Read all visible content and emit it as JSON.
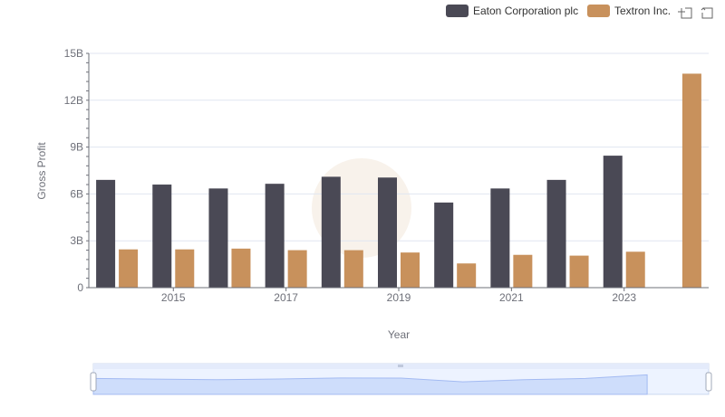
{
  "chart_data": {
    "type": "bar",
    "categories": [
      "2014",
      "2015",
      "2016",
      "2017",
      "2018",
      "2019",
      "2020",
      "2021",
      "2022",
      "2023",
      "2024"
    ],
    "x_tick_labels": [
      "2015",
      "2017",
      "2019",
      "2021",
      "2023"
    ],
    "y_tick_labels": [
      "0",
      "3B",
      "6B",
      "9B",
      "12B",
      "15B"
    ],
    "ylim": [
      0,
      15
    ],
    "xlabel": "Year",
    "ylabel": "Gross Profit",
    "grid": true,
    "legend_position": "top-right",
    "series": [
      {
        "name": "Eaton Corporation plc",
        "color": "#4a4955",
        "values": [
          6.9,
          6.6,
          6.35,
          6.65,
          7.1,
          7.05,
          5.45,
          6.35,
          6.9,
          8.45,
          null
        ]
      },
      {
        "name": "Textron Inc.",
        "color": "#c8915c",
        "values": [
          2.45,
          2.45,
          2.5,
          2.4,
          2.4,
          2.25,
          1.55,
          2.1,
          2.05,
          2.3,
          13.7
        ]
      }
    ]
  },
  "toolbox": {
    "zoom_icon": "zoom-icon",
    "restore_icon": "restore-icon"
  },
  "data_zoom": {
    "range_start": 0,
    "range_end": 1,
    "fill_color": "#dbe6fb",
    "line_color": "#a8bdf0"
  }
}
